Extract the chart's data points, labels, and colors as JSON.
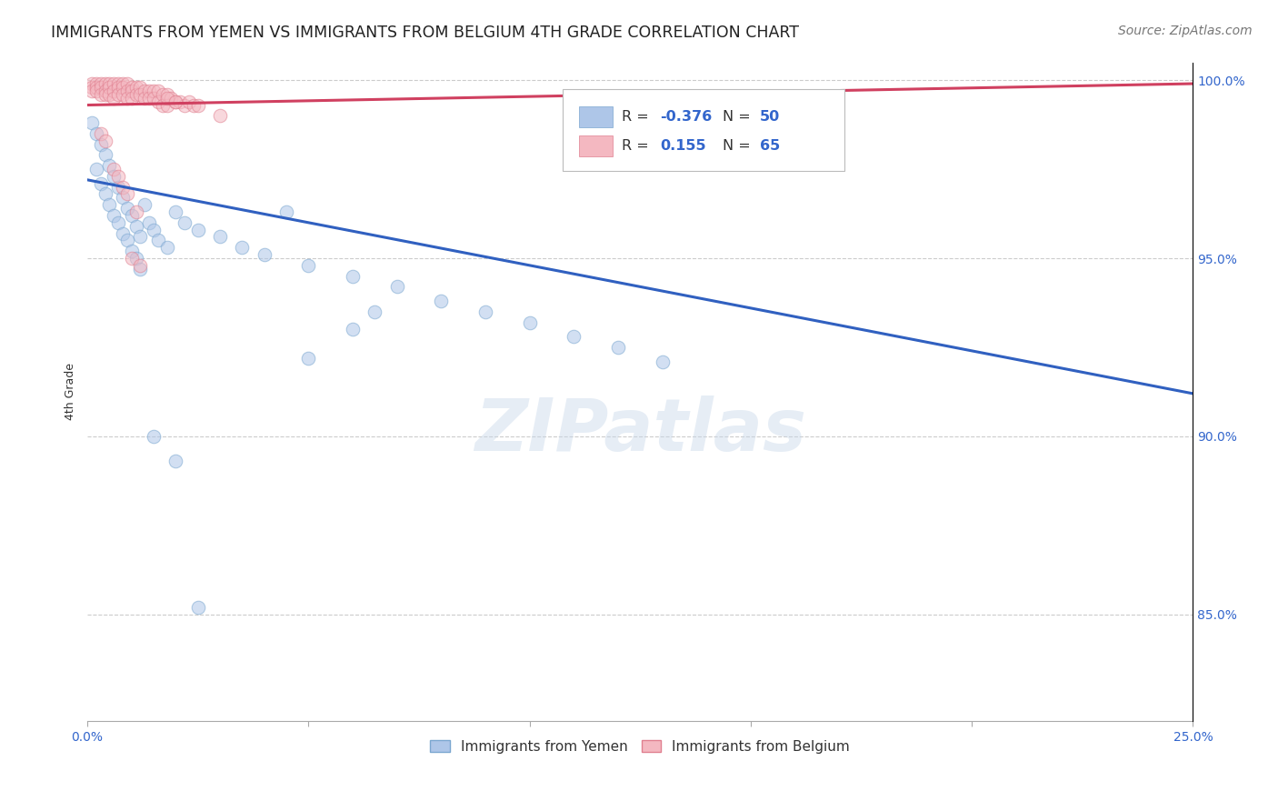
{
  "title": "IMMIGRANTS FROM YEMEN VS IMMIGRANTS FROM BELGIUM 4TH GRADE CORRELATION CHART",
  "source": "Source: ZipAtlas.com",
  "ylabel": "4th Grade",
  "xlim": [
    0.0,
    0.25
  ],
  "ylim": [
    0.82,
    1.005
  ],
  "xticks": [
    0.0,
    0.05,
    0.1,
    0.15,
    0.2,
    0.25
  ],
  "xtick_labels": [
    "0.0%",
    "",
    "",
    "",
    "",
    "25.0%"
  ],
  "yticks": [
    0.85,
    0.9,
    0.95,
    1.0
  ],
  "ytick_labels": [
    "85.0%",
    "90.0%",
    "95.0%",
    "100.0%"
  ],
  "legend_entries": [
    {
      "label": "Immigrants from Yemen",
      "color": "#aec6e8",
      "edge": "#7ba7d0",
      "R": "-0.376",
      "N": "50"
    },
    {
      "label": "Immigrants from Belgium",
      "color": "#f4b8c1",
      "edge": "#e08090",
      "R": "0.155",
      "N": "65"
    }
  ],
  "watermark": "ZIPatlas",
  "yemen_scatter": [
    [
      0.001,
      0.988
    ],
    [
      0.002,
      0.985
    ],
    [
      0.002,
      0.975
    ],
    [
      0.003,
      0.982
    ],
    [
      0.003,
      0.971
    ],
    [
      0.004,
      0.979
    ],
    [
      0.004,
      0.968
    ],
    [
      0.005,
      0.976
    ],
    [
      0.005,
      0.965
    ],
    [
      0.006,
      0.973
    ],
    [
      0.006,
      0.962
    ],
    [
      0.007,
      0.97
    ],
    [
      0.007,
      0.96
    ],
    [
      0.008,
      0.967
    ],
    [
      0.008,
      0.957
    ],
    [
      0.009,
      0.964
    ],
    [
      0.009,
      0.955
    ],
    [
      0.01,
      0.962
    ],
    [
      0.01,
      0.952
    ],
    [
      0.011,
      0.959
    ],
    [
      0.011,
      0.95
    ],
    [
      0.012,
      0.956
    ],
    [
      0.012,
      0.947
    ],
    [
      0.013,
      0.965
    ],
    [
      0.014,
      0.96
    ],
    [
      0.015,
      0.958
    ],
    [
      0.016,
      0.955
    ],
    [
      0.018,
      0.953
    ],
    [
      0.02,
      0.963
    ],
    [
      0.022,
      0.96
    ],
    [
      0.025,
      0.958
    ],
    [
      0.03,
      0.956
    ],
    [
      0.035,
      0.953
    ],
    [
      0.04,
      0.951
    ],
    [
      0.045,
      0.963
    ],
    [
      0.05,
      0.948
    ],
    [
      0.06,
      0.945
    ],
    [
      0.065,
      0.935
    ],
    [
      0.07,
      0.942
    ],
    [
      0.08,
      0.938
    ],
    [
      0.09,
      0.935
    ],
    [
      0.1,
      0.932
    ],
    [
      0.11,
      0.928
    ],
    [
      0.12,
      0.925
    ],
    [
      0.05,
      0.922
    ],
    [
      0.13,
      0.921
    ],
    [
      0.015,
      0.9
    ],
    [
      0.02,
      0.893
    ],
    [
      0.025,
      0.852
    ],
    [
      0.06,
      0.93
    ]
  ],
  "belgium_scatter": [
    [
      0.001,
      0.999
    ],
    [
      0.001,
      0.998
    ],
    [
      0.001,
      0.997
    ],
    [
      0.002,
      0.999
    ],
    [
      0.002,
      0.998
    ],
    [
      0.002,
      0.997
    ],
    [
      0.003,
      0.999
    ],
    [
      0.003,
      0.998
    ],
    [
      0.003,
      0.996
    ],
    [
      0.004,
      0.999
    ],
    [
      0.004,
      0.997
    ],
    [
      0.004,
      0.996
    ],
    [
      0.005,
      0.999
    ],
    [
      0.005,
      0.998
    ],
    [
      0.005,
      0.996
    ],
    [
      0.006,
      0.999
    ],
    [
      0.006,
      0.997
    ],
    [
      0.006,
      0.995
    ],
    [
      0.007,
      0.999
    ],
    [
      0.007,
      0.998
    ],
    [
      0.007,
      0.996
    ],
    [
      0.008,
      0.999
    ],
    [
      0.008,
      0.998
    ],
    [
      0.008,
      0.996
    ],
    [
      0.009,
      0.999
    ],
    [
      0.009,
      0.997
    ],
    [
      0.009,
      0.995
    ],
    [
      0.01,
      0.998
    ],
    [
      0.01,
      0.997
    ],
    [
      0.01,
      0.995
    ],
    [
      0.011,
      0.998
    ],
    [
      0.011,
      0.996
    ],
    [
      0.012,
      0.998
    ],
    [
      0.012,
      0.996
    ],
    [
      0.013,
      0.997
    ],
    [
      0.013,
      0.995
    ],
    [
      0.014,
      0.997
    ],
    [
      0.014,
      0.995
    ],
    [
      0.015,
      0.997
    ],
    [
      0.015,
      0.995
    ],
    [
      0.016,
      0.997
    ],
    [
      0.016,
      0.994
    ],
    [
      0.017,
      0.996
    ],
    [
      0.017,
      0.993
    ],
    [
      0.018,
      0.996
    ],
    [
      0.018,
      0.993
    ],
    [
      0.019,
      0.995
    ],
    [
      0.02,
      0.994
    ],
    [
      0.021,
      0.994
    ],
    [
      0.022,
      0.993
    ],
    [
      0.023,
      0.994
    ],
    [
      0.024,
      0.993
    ],
    [
      0.025,
      0.993
    ],
    [
      0.03,
      0.99
    ],
    [
      0.01,
      0.95
    ],
    [
      0.012,
      0.948
    ],
    [
      0.018,
      0.995
    ],
    [
      0.02,
      0.994
    ],
    [
      0.003,
      0.985
    ],
    [
      0.004,
      0.983
    ],
    [
      0.006,
      0.975
    ],
    [
      0.007,
      0.973
    ],
    [
      0.008,
      0.97
    ],
    [
      0.009,
      0.968
    ],
    [
      0.011,
      0.963
    ]
  ],
  "yemen_line": [
    [
      0.0,
      0.972
    ],
    [
      0.25,
      0.912
    ]
  ],
  "belgium_line": [
    [
      0.0,
      0.993
    ],
    [
      0.25,
      0.999
    ]
  ],
  "scatter_size": 110,
  "scatter_alpha": 0.55,
  "line_color_yemen": "#3060c0",
  "line_color_belgium": "#d04060",
  "grid_color": "#cccccc",
  "background_color": "#ffffff",
  "title_fontsize": 12.5,
  "axis_label_fontsize": 9,
  "tick_fontsize": 10,
  "source_fontsize": 10
}
